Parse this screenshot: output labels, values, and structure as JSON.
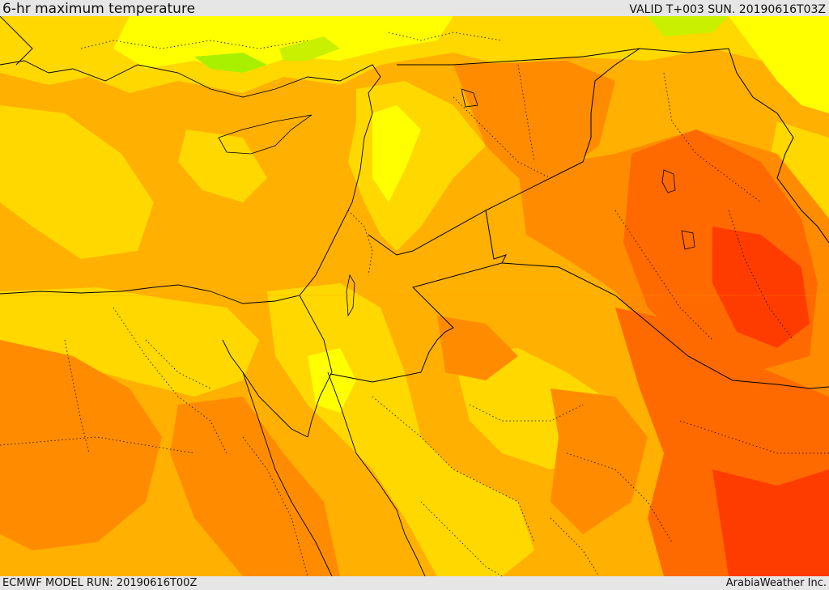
{
  "header": {
    "title": "6-hr maximum temperature",
    "valid_time": "VALID T+003 SUN. 20190616T03Z"
  },
  "footer": {
    "model_run": "ECMWF MODEL RUN: 20190616T00Z",
    "credit": "ArabiaWeather Inc."
  },
  "map": {
    "field": "temperature",
    "palette": [
      "#a8f000",
      "#ffff00",
      "#ffd800",
      "#ffb000",
      "#ff8c00",
      "#ff6a00",
      "#ff3c00"
    ],
    "border_color": "#000000"
  }
}
